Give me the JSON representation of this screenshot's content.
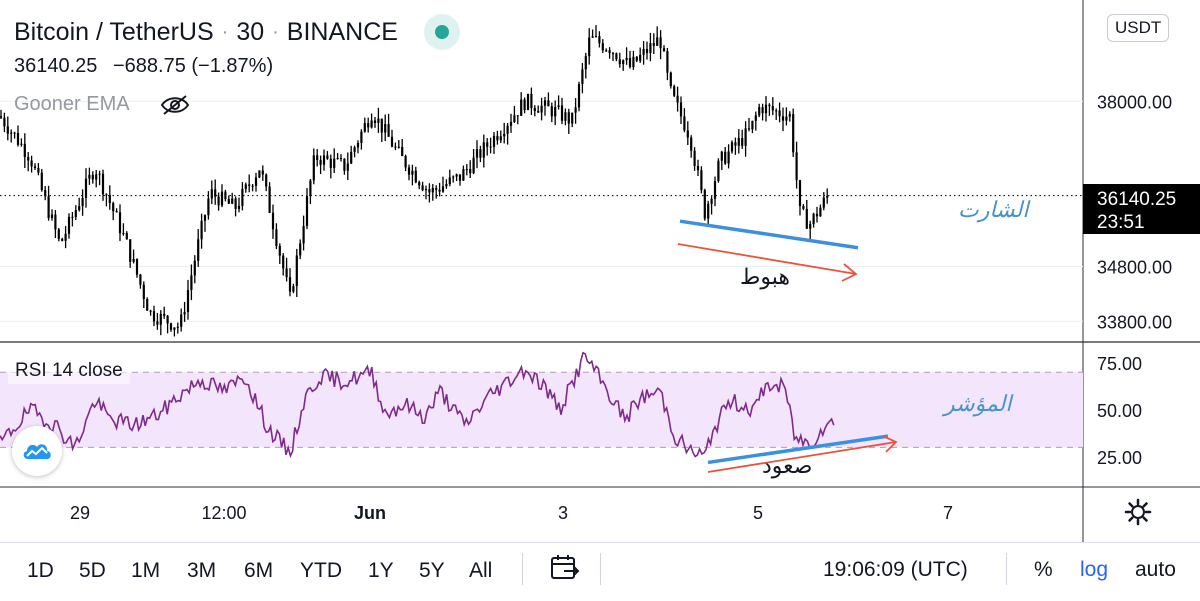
{
  "header": {
    "symbol": "Bitcoin / TetherUS",
    "interval": "30",
    "exchange": "BINANCE",
    "price": "36140.25",
    "change": "−688.75 (−1.87%)",
    "indicator": "Gooner EMA"
  },
  "currency_badge": "USDT",
  "price_tag": {
    "price": "36140.25",
    "countdown": "23:51"
  },
  "annotations": {
    "chart_label": "الشارت",
    "price_trend": "هبوط",
    "indicator_label": "المؤشر",
    "rsi_trend": "صعود"
  },
  "chart_data": [
    {
      "type": "line",
      "subtype": "candlestick",
      "ylim": [
        33500,
        40000
      ],
      "y_ticks": [
        "38000.00",
        "34800.00",
        "33800.00"
      ],
      "y_scale": "log",
      "x_ticks": [
        "29",
        "12:00",
        "Jun",
        "3",
        "5",
        "7"
      ],
      "last_price": 36140.25,
      "path": [
        [
          0,
          37700
        ],
        [
          30,
          36900
        ],
        [
          60,
          35200
        ],
        [
          95,
          36700
        ],
        [
          125,
          35300
        ],
        [
          150,
          33950
        ],
        [
          180,
          33700
        ],
        [
          210,
          36200
        ],
        [
          235,
          35900
        ],
        [
          260,
          36700
        ],
        [
          290,
          34200
        ],
        [
          315,
          36900
        ],
        [
          345,
          36700
        ],
        [
          372,
          37800
        ],
        [
          400,
          36900
        ],
        [
          430,
          36200
        ],
        [
          460,
          36500
        ],
        [
          495,
          37300
        ],
        [
          525,
          38000
        ],
        [
          555,
          37800
        ],
        [
          572,
          37600
        ],
        [
          590,
          39300
        ],
        [
          610,
          39100
        ],
        [
          630,
          38700
        ],
        [
          660,
          39300
        ],
        [
          670,
          38200
        ],
        [
          690,
          37300
        ],
        [
          705,
          35800
        ],
        [
          720,
          36800
        ],
        [
          750,
          37400
        ],
        [
          760,
          37900
        ],
        [
          790,
          37700
        ],
        [
          800,
          35800
        ],
        [
          810,
          35600
        ],
        [
          830,
          36200
        ]
      ],
      "trendline": {
        "from": [
          680,
          35650
        ],
        "to": [
          858,
          35150
        ]
      }
    },
    {
      "type": "line",
      "title": "RSI 14 close",
      "ylim": [
        10,
        85
      ],
      "y_ticks": [
        "75.00",
        "50.00",
        "25.00"
      ],
      "band": [
        30,
        70
      ],
      "series": [
        {
          "points": [
            [
              0,
              32
            ],
            [
              30,
              50
            ],
            [
              55,
              42
            ],
            [
              75,
              30
            ],
            [
              95,
              55
            ],
            [
              110,
              45
            ],
            [
              135,
              42
            ],
            [
              160,
              48
            ],
            [
              180,
              58
            ],
            [
              200,
              66
            ],
            [
              225,
              60
            ],
            [
              245,
              68
            ],
            [
              268,
              40
            ],
            [
              290,
              27
            ],
            [
              305,
              56
            ],
            [
              320,
              68
            ],
            [
              345,
              65
            ],
            [
              372,
              70
            ],
            [
              385,
              48
            ],
            [
              405,
              53
            ],
            [
              425,
              46
            ],
            [
              440,
              60
            ],
            [
              465,
              42
            ],
            [
              490,
              58
            ],
            [
              525,
              72
            ],
            [
              545,
              62
            ],
            [
              560,
              50
            ],
            [
              585,
              79
            ],
            [
              605,
              62
            ],
            [
              625,
              45
            ],
            [
              640,
              56
            ],
            [
              660,
              60
            ],
            [
              675,
              36
            ],
            [
              690,
              28
            ],
            [
              705,
              25
            ],
            [
              712,
              38
            ],
            [
              730,
              55
            ],
            [
              755,
              50
            ],
            [
              765,
              63
            ],
            [
              785,
              62
            ],
            [
              795,
              35
            ],
            [
              810,
              32
            ],
            [
              825,
              42
            ],
            [
              835,
              43
            ]
          ]
        }
      ],
      "trendline": {
        "from": [
          708,
          22
        ],
        "to": [
          888,
          36
        ]
      }
    }
  ],
  "bottom_bar": {
    "ranges": [
      "1D",
      "5D",
      "1M",
      "3M",
      "6M",
      "YTD",
      "1Y",
      "5Y",
      "All"
    ],
    "clock": "19:06:09 (UTC)",
    "percent": "%",
    "log": "log",
    "auto": "auto"
  },
  "colors": {
    "candle": "#000000",
    "rsi_line": "#7e2a8c",
    "rsi_band": "#f3e5fb",
    "trendline": "#3d8fdf",
    "arrow": "#e8553f",
    "annotation_blue": "#4a93c7",
    "accent_log": "#2962ff"
  }
}
